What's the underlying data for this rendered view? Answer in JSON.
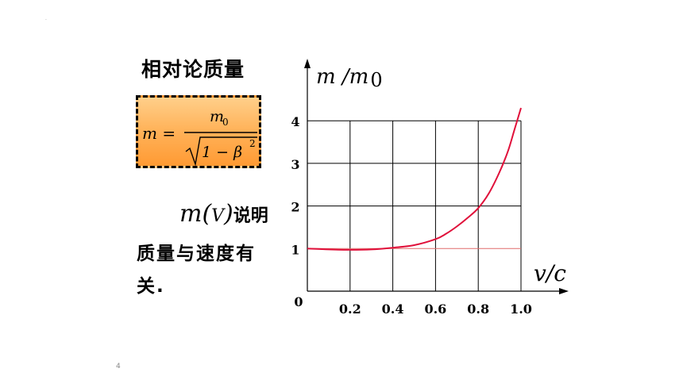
{
  "slide": {
    "title": "相对论质量",
    "explanation_part1": "m(",
    "explanation_var": "V",
    "explanation_part2": ")",
    "explanation_suffix": "说明",
    "explanation_line2": "质量与速度有",
    "explanation_line3": "关.",
    "page_number": "4",
    "corner_mark": "·"
  },
  "formula": {
    "lhs": "m =",
    "numerator": "m",
    "numerator_sub": "0",
    "denominator": "1 − β",
    "denominator_sup": "2"
  },
  "chart_data": {
    "type": "line",
    "title": "",
    "xlabel": "v/c",
    "ylabel": "m /m",
    "ylabel_suffix": "0",
    "origin_label": "0",
    "xlim": [
      0,
      1.1
    ],
    "ylim": [
      0,
      4.5
    ],
    "x_ticks": [
      "0.2",
      "0.4",
      "0.6",
      "0.8",
      "1.0"
    ],
    "x_tick_values": [
      0.2,
      0.4,
      0.6,
      0.8,
      1.0
    ],
    "y_ticks": [
      "1",
      "2",
      "3",
      "4"
    ],
    "y_tick_values": [
      1,
      2,
      3,
      4
    ],
    "grid": true,
    "reference_line": 1,
    "series": [
      {
        "x": [
          0.0,
          0.1,
          0.2,
          0.3,
          0.4,
          0.5,
          0.6,
          0.65,
          0.7,
          0.75,
          0.8,
          0.85,
          0.9,
          0.94,
          0.97,
          1.0
        ],
        "y": [
          1.0,
          0.98,
          0.97,
          0.98,
          1.02,
          1.08,
          1.22,
          1.35,
          1.52,
          1.72,
          1.95,
          2.3,
          2.8,
          3.3,
          3.8,
          4.3
        ],
        "color": "#e0103a"
      }
    ],
    "colors": {
      "axis": "#000000",
      "grid": "#000000",
      "reference": "#e06a6a"
    }
  }
}
